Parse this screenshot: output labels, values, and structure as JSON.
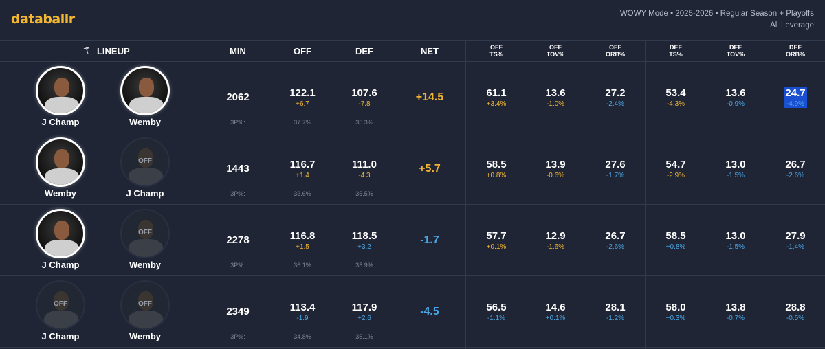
{
  "brand": "databallr",
  "meta": {
    "line1": "WOWY Mode • 2025-2026 • Regular Season + Playoffs",
    "line2": "All Leverage"
  },
  "headers": {
    "lineup": "LINEUP",
    "min": "MIN",
    "off": "OFF",
    "def": "DEF",
    "net": "NET",
    "off_ts": [
      "OFF",
      "TS%"
    ],
    "off_tov": [
      "OFF",
      "TOV%"
    ],
    "off_orb": [
      "OFF",
      "ORB%"
    ],
    "def_ts": [
      "DEF",
      "TS%"
    ],
    "def_tov": [
      "DEF",
      "TOV%"
    ],
    "def_orb": [
      "DEF",
      "ORB%"
    ]
  },
  "colors": {
    "accent": "#f2b632",
    "negative": "#4aa8e8",
    "highlight": "#1a4fd1"
  },
  "rows": [
    {
      "p1": {
        "name": "J Champ",
        "status": "on"
      },
      "p2": {
        "name": "Wemby",
        "status": "on"
      },
      "min": "2062",
      "tp_label": "3P%:",
      "off": "122.1",
      "off_d": "+6.7",
      "off_3p": "37.7%",
      "def": "107.6",
      "def_d": "-7.8",
      "def_3p": "35.3%",
      "net": "+14.5",
      "off_ts": "61.1",
      "off_ts_d": "+3.4%",
      "off_tov": "13.6",
      "off_tov_d": "-1.0%",
      "off_orb": "27.2",
      "off_orb_d": "-2.4%",
      "def_ts": "53.4",
      "def_ts_d": "-4.3%",
      "def_tov": "13.6",
      "def_tov_d": "-0.9%",
      "def_orb": "24.7",
      "def_orb_d": "-4.9%"
    },
    {
      "p1": {
        "name": "Wemby",
        "status": "on"
      },
      "p2": {
        "name": "J Champ",
        "status": "off",
        "off_label": "OFF"
      },
      "min": "1443",
      "tp_label": "3P%:",
      "off": "116.7",
      "off_d": "+1.4",
      "off_3p": "33.6%",
      "def": "111.0",
      "def_d": "-4.3",
      "def_3p": "35.5%",
      "net": "+5.7",
      "off_ts": "58.5",
      "off_ts_d": "+0.8%",
      "off_tov": "13.9",
      "off_tov_d": "-0.6%",
      "off_orb": "27.6",
      "off_orb_d": "-1.7%",
      "def_ts": "54.7",
      "def_ts_d": "-2.9%",
      "def_tov": "13.0",
      "def_tov_d": "-1.5%",
      "def_orb": "26.7",
      "def_orb_d": "-2.6%"
    },
    {
      "p1": {
        "name": "J Champ",
        "status": "on"
      },
      "p2": {
        "name": "Wemby",
        "status": "off",
        "off_label": "OFF"
      },
      "min": "2278",
      "tp_label": "3P%:",
      "off": "116.8",
      "off_d": "+1.5",
      "off_3p": "36.1%",
      "def": "118.5",
      "def_d": "+3.2",
      "def_3p": "35.9%",
      "net": "-1.7",
      "off_ts": "57.7",
      "off_ts_d": "+0.1%",
      "off_tov": "12.9",
      "off_tov_d": "-1.6%",
      "off_orb": "26.7",
      "off_orb_d": "-2.6%",
      "def_ts": "58.5",
      "def_ts_d": "+0.8%",
      "def_tov": "13.0",
      "def_tov_d": "-1.5%",
      "def_orb": "27.9",
      "def_orb_d": "-1.4%"
    },
    {
      "p1": {
        "name": "J Champ",
        "status": "off",
        "off_label": "OFF"
      },
      "p2": {
        "name": "Wemby",
        "status": "off",
        "off_label": "OFF"
      },
      "min": "2349",
      "tp_label": "3P%:",
      "off": "113.4",
      "off_d": "-1.9",
      "off_3p": "34.8%",
      "def": "117.9",
      "def_d": "+2.6",
      "def_3p": "35.1%",
      "net": "-4.5",
      "off_ts": "56.5",
      "off_ts_d": "-1.1%",
      "off_tov": "14.6",
      "off_tov_d": "+0.1%",
      "off_orb": "28.1",
      "off_orb_d": "-1.2%",
      "def_ts": "58.0",
      "def_ts_d": "+0.3%",
      "def_tov": "13.8",
      "def_tov_d": "-0.7%",
      "def_orb": "28.8",
      "def_orb_d": "-0.5%"
    }
  ]
}
